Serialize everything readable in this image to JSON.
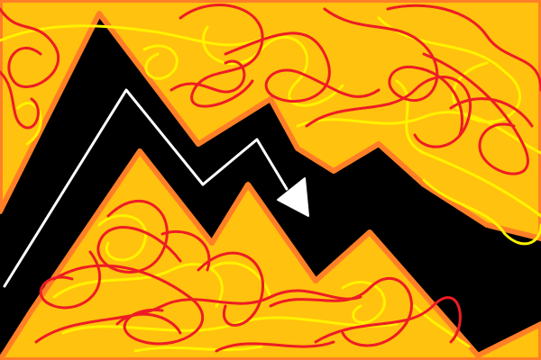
{
  "scene": {
    "description_kind": "hand-drawn geometry-dash style level",
    "colors": {
      "background": "#000000",
      "terrain_fill": "#ffc20e",
      "terrain_outline": "#ff7f27",
      "scribble_red": "#ed1c24",
      "scribble_yellow": "#fff200",
      "path_line": "#ffffff"
    },
    "elements": {
      "terrain": "mountain-terrain",
      "player_path": "wave-path",
      "player_icon": "arrow-head-icon"
    }
  }
}
